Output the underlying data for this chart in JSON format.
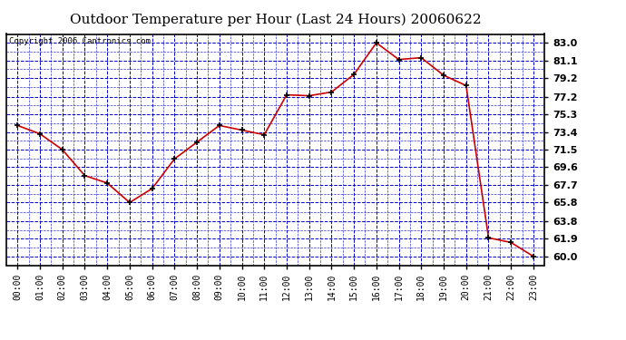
{
  "title": "Outdoor Temperature per Hour (Last 24 Hours) 20060622",
  "copyright": "Copyright 2006 Cantronics.com",
  "hours": [
    "00:00",
    "01:00",
    "02:00",
    "03:00",
    "04:00",
    "05:00",
    "06:00",
    "07:00",
    "08:00",
    "09:00",
    "10:00",
    "11:00",
    "12:00",
    "13:00",
    "14:00",
    "15:00",
    "16:00",
    "17:00",
    "18:00",
    "19:00",
    "20:00",
    "21:00",
    "22:00",
    "23:00"
  ],
  "temperatures": [
    74.1,
    73.2,
    71.5,
    68.7,
    67.9,
    65.8,
    67.3,
    70.5,
    72.3,
    74.1,
    73.6,
    73.1,
    77.4,
    77.3,
    77.7,
    79.6,
    83.0,
    81.2,
    81.4,
    79.5,
    78.4,
    62.0,
    61.5,
    60.0
  ],
  "yticks": [
    60.0,
    61.9,
    63.8,
    65.8,
    67.7,
    69.6,
    71.5,
    73.4,
    75.3,
    77.2,
    79.2,
    81.1,
    83.0
  ],
  "ymin": 59.05,
  "ymax": 83.95,
  "line_color": "#cc0000",
  "marker_color": "#000000",
  "bg_color": "#ffffff",
  "plot_bg_color": "#ffffff",
  "grid_color": "#0000cc",
  "title_fontsize": 11,
  "copyright_fontsize": 6.5,
  "tick_fontsize": 7,
  "ytick_fontsize": 8
}
